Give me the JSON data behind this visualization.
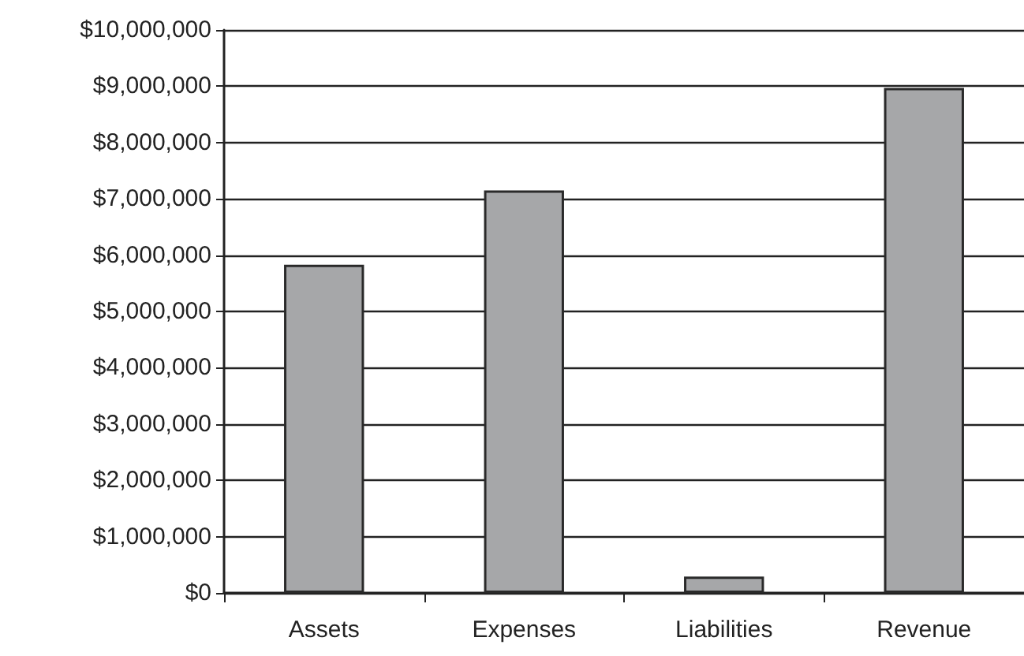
{
  "chart_data": {
    "type": "bar",
    "categories": [
      "Assets",
      "Expenses",
      "Liabilities",
      "Revenue"
    ],
    "values": [
      5830000,
      7150000,
      290000,
      8970000
    ],
    "color": "#a6a7a9",
    "ylim": [
      0,
      10000000
    ],
    "yticks": [
      {
        "value": 0,
        "label": "$0"
      },
      {
        "value": 1000000,
        "label": "$1,000,000"
      },
      {
        "value": 2000000,
        "label": "$2,000,000"
      },
      {
        "value": 3000000,
        "label": "$3,000,000"
      },
      {
        "value": 4000000,
        "label": "$4,000,000"
      },
      {
        "value": 5000000,
        "label": "$5,000,000"
      },
      {
        "value": 6000000,
        "label": "$6,000,000"
      },
      {
        "value": 7000000,
        "label": "$7,000,000"
      },
      {
        "value": 8000000,
        "label": "$8,000,000"
      },
      {
        "value": 9000000,
        "label": "$9,000,000"
      },
      {
        "value": 10000000,
        "label": "$10,000,000"
      }
    ],
    "grid": true
  }
}
